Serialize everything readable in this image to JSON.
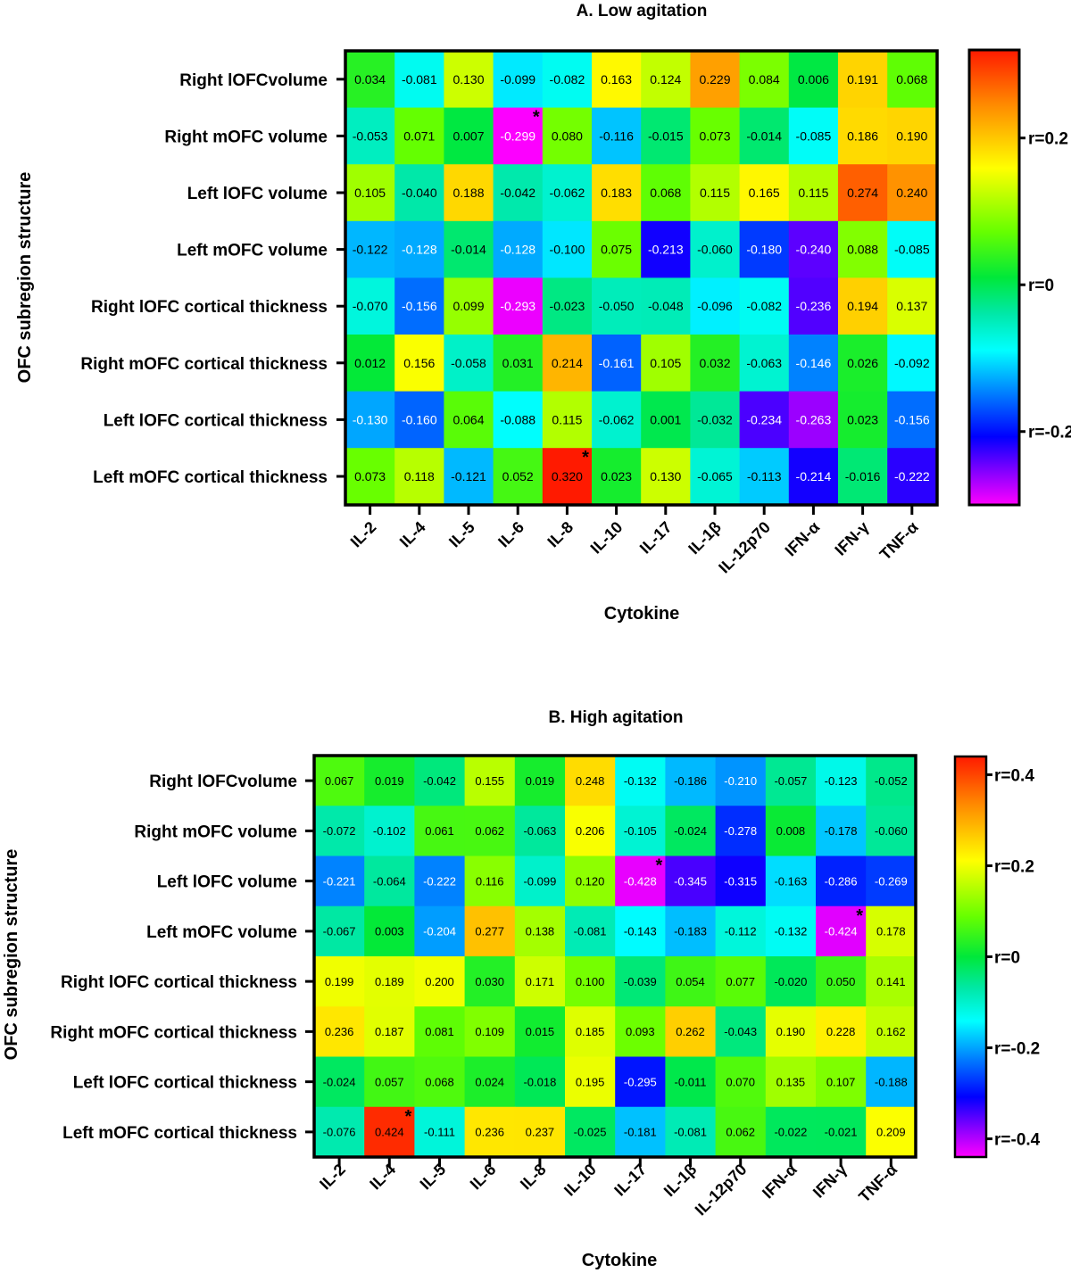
{
  "chart_data": [
    {
      "type": "heatmap",
      "title": "A. Low agitation",
      "xlabel": "Cytokine",
      "ylabel": "OFC subregion structure",
      "columns": [
        "IL-2",
        "IL-4",
        "IL-5",
        "IL-6",
        "IL-8",
        "IL-10",
        "IL-17",
        "IL-1β",
        "IL-12p70",
        "IFN-α",
        "IFN-γ",
        "TNF-α"
      ],
      "rows": [
        "Right lOFCvolume",
        "Right mOFC volume",
        "Left lOFC volume",
        "Left mOFC volume",
        "Right lOFC cortical thickness",
        "Right mOFC cortical thickness",
        "Left lOFC cortical thickness",
        "Left mOFC cortical thickness"
      ],
      "values": [
        [
          0.034,
          -0.081,
          0.13,
          -0.099,
          -0.082,
          0.163,
          0.124,
          0.229,
          0.084,
          0.006,
          0.191,
          0.068
        ],
        [
          -0.053,
          0.071,
          0.007,
          -0.299,
          0.08,
          -0.116,
          -0.015,
          0.073,
          -0.014,
          -0.085,
          0.186,
          0.19
        ],
        [
          0.105,
          -0.04,
          0.188,
          -0.042,
          -0.062,
          0.183,
          0.068,
          0.115,
          0.165,
          0.115,
          0.274,
          0.24
        ],
        [
          -0.122,
          -0.128,
          -0.014,
          -0.128,
          -0.1,
          0.075,
          -0.213,
          -0.06,
          -0.18,
          -0.24,
          0.088,
          -0.085
        ],
        [
          -0.07,
          -0.156,
          0.099,
          -0.293,
          -0.023,
          -0.05,
          -0.048,
          -0.096,
          -0.082,
          -0.236,
          0.194,
          0.137
        ],
        [
          0.012,
          0.156,
          -0.058,
          0.031,
          0.214,
          -0.161,
          0.105,
          0.032,
          -0.063,
          -0.146,
          0.026,
          -0.092
        ],
        [
          -0.13,
          -0.16,
          0.064,
          -0.088,
          0.115,
          -0.062,
          0.001,
          -0.032,
          -0.234,
          -0.263,
          0.023,
          -0.156
        ],
        [
          0.073,
          0.118,
          -0.121,
          0.052,
          0.32,
          0.023,
          0.13,
          -0.065,
          -0.113,
          -0.214,
          -0.016,
          -0.222
        ]
      ],
      "labels": [
        [
          "0.034",
          "-0.081",
          "0.130",
          "-0.099",
          "-0.082",
          "0.163",
          "0.124",
          "0.229",
          "0.084",
          "0.006",
          "0.191",
          "0.068"
        ],
        [
          "-0.053",
          "0.071",
          "0.007",
          "-0.299",
          "0.080",
          "-0.116",
          "-0.015",
          "0.073",
          "-0.014",
          "-0.085",
          "0.186",
          "0.190"
        ],
        [
          "0.105",
          "-0.040",
          "0.188",
          "-0.042",
          "-0.062",
          "0.183",
          "0.068",
          "0.115",
          "0.165",
          "0.115",
          "0.274",
          "0.240"
        ],
        [
          "-0.122",
          "-0.128",
          "-0.014",
          "-0.128",
          "-0.100",
          "0.075",
          "-0.213",
          "-0.060",
          "-0.180",
          "-0.240",
          "0.088",
          "-0.085"
        ],
        [
          "-0.070",
          "-0.156",
          "0.099",
          "-0.293",
          "-0.023",
          "-0.050",
          "-0.048",
          "-0.096",
          "-0.082",
          "-0.236",
          "0.194",
          "0.137"
        ],
        [
          "0.012",
          "0.156",
          "-0.058",
          "0.031",
          "0.214",
          "-0.161",
          "0.105",
          "0.032",
          "-0.063",
          "-0.146",
          "0.026",
          "-0.092"
        ],
        [
          "-0.130",
          "-0.160",
          "0.064",
          "-0.088",
          "0.115",
          "-0.062",
          "0.001",
          "-0.032",
          "-0.234",
          "-0.263",
          "0.023",
          "-0.156"
        ],
        [
          "0.073",
          "0.118",
          "-0.121",
          "0.052",
          "0.320",
          "0.023",
          "0.130",
          "-0.065",
          "-0.113",
          "-0.214",
          "-0.016",
          "-0.222"
        ]
      ],
      "significant": [
        [
          1,
          3
        ],
        [
          7,
          4
        ]
      ],
      "significance_marker": "*",
      "color_range": [
        -0.3,
        0.32
      ],
      "colorbar_ticks": [
        {
          "value": 0.2,
          "label": "r=0.2"
        },
        {
          "value": 0,
          "label": "r=0"
        },
        {
          "value": -0.2,
          "label": "r=-0.2"
        }
      ]
    },
    {
      "type": "heatmap",
      "title": "B. High agitation",
      "xlabel": "Cytokine",
      "ylabel": "OFC subregion structure",
      "columns": [
        "IL-2",
        "IL-4",
        "IL-5",
        "IL-6",
        "IL-8",
        "IL-10",
        "IL-17",
        "IL-1β",
        "IL-12p70",
        "IFN-α",
        "IFN-γ",
        "TNF-α"
      ],
      "rows": [
        "Right lOFCvolume",
        "Right mOFC volume",
        "Left lOFC volume",
        "Left mOFC volume",
        "Right lOFC cortical thickness",
        "Right mOFC cortical thickness",
        "Left lOFC cortical thickness",
        "Left mOFC cortical thickness"
      ],
      "values": [
        [
          0.067,
          0.019,
          -0.042,
          0.155,
          0.019,
          0.248,
          -0.132,
          -0.186,
          -0.21,
          -0.057,
          -0.123,
          -0.052
        ],
        [
          -0.072,
          -0.102,
          0.061,
          0.062,
          -0.063,
          0.206,
          -0.105,
          -0.024,
          -0.278,
          0.008,
          -0.178,
          -0.06
        ],
        [
          -0.221,
          -0.064,
          -0.222,
          0.116,
          -0.099,
          0.12,
          -0.428,
          -0.345,
          -0.315,
          -0.163,
          -0.286,
          -0.269
        ],
        [
          -0.067,
          0.003,
          -0.204,
          0.277,
          0.138,
          -0.081,
          -0.143,
          -0.183,
          -0.112,
          -0.132,
          -0.424,
          0.178
        ],
        [
          0.199,
          0.189,
          0.2,
          0.03,
          0.171,
          0.1,
          -0.039,
          0.054,
          0.077,
          -0.02,
          0.05,
          0.141
        ],
        [
          0.236,
          0.187,
          0.081,
          0.109,
          0.015,
          0.185,
          0.093,
          0.262,
          -0.043,
          0.19,
          0.228,
          0.162
        ],
        [
          -0.024,
          0.057,
          0.068,
          0.024,
          -0.018,
          0.195,
          -0.295,
          -0.011,
          0.07,
          0.135,
          0.107,
          -0.188
        ],
        [
          -0.076,
          0.424,
          -0.111,
          0.236,
          0.237,
          -0.025,
          -0.181,
          -0.081,
          0.062,
          -0.022,
          -0.021,
          0.209
        ]
      ],
      "labels": [
        [
          "0.067",
          "0.019",
          "-0.042",
          "0.155",
          "0.019",
          "0.248",
          "-0.132",
          "-0.186",
          "-0.210",
          "-0.057",
          "-0.123",
          "-0.052"
        ],
        [
          "-0.072",
          "-0.102",
          "0.061",
          "0.062",
          "-0.063",
          "0.206",
          "-0.105",
          "-0.024",
          "-0.278",
          "0.008",
          "-0.178",
          "-0.060"
        ],
        [
          "-0.221",
          "-0.064",
          "-0.222",
          "0.116",
          "-0.099",
          "0.120",
          "-0.428",
          "-0.345",
          "-0.315",
          "-0.163",
          "-0.286",
          "-0.269"
        ],
        [
          "-0.067",
          "0.003",
          "-0.204",
          "0.277",
          "0.138",
          "-0.081",
          "-0.143",
          "-0.183",
          "-0.112",
          "-0.132",
          "-0.424",
          "0.178"
        ],
        [
          "0.199",
          "0.189",
          "0.200",
          "0.030",
          "0.171",
          "0.100",
          "-0.039",
          "0.054",
          "0.077",
          "-0.020",
          "0.050",
          "0.141"
        ],
        [
          "0.236",
          "0.187",
          "0.081",
          "0.109",
          "0.015",
          "0.185",
          "0.093",
          "0.262",
          "-0.043",
          "0.190",
          "0.228",
          "0.162"
        ],
        [
          "-0.024",
          "0.057",
          "0.068",
          "0.024",
          "-0.018",
          "0.195",
          "-0.295",
          "-0.011",
          "0.070",
          "0.135",
          "0.107",
          "-0.188"
        ],
        [
          "-0.076",
          "0.424",
          "-0.111",
          "0.236",
          "0.237",
          "-0.025",
          "-0.181",
          "-0.081",
          "0.062",
          "-0.022",
          "-0.021",
          "0.209"
        ]
      ],
      "significant": [
        [
          2,
          6
        ],
        [
          3,
          10
        ],
        [
          7,
          1
        ]
      ],
      "significance_marker": "*",
      "color_range": [
        -0.44,
        0.44
      ],
      "colorbar_ticks": [
        {
          "value": 0.4,
          "label": "r=0.4"
        },
        {
          "value": 0.2,
          "label": "r=0.2"
        },
        {
          "value": 0,
          "label": "r=0"
        },
        {
          "value": -0.2,
          "label": "r=-0.2"
        },
        {
          "value": -0.4,
          "label": "r=-0.4"
        }
      ]
    }
  ]
}
